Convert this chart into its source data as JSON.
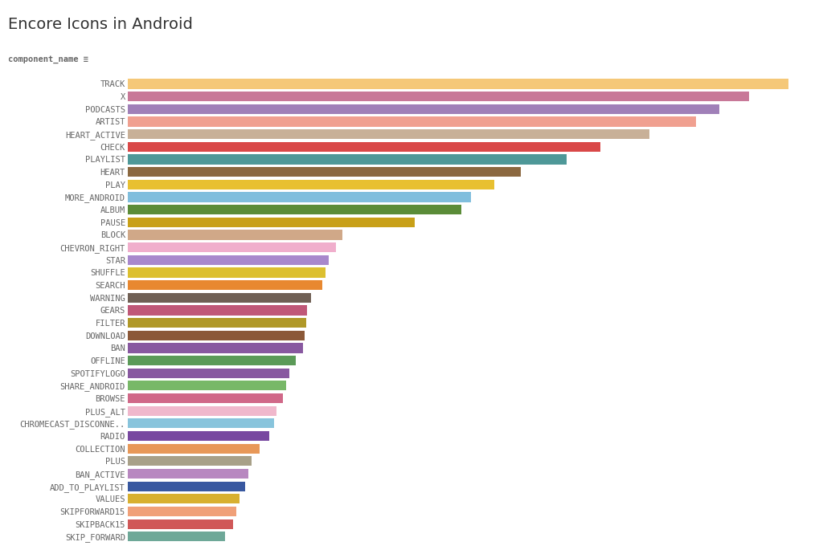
{
  "title": "Encore Icons in Android",
  "xlabel_label": "component_name ≡",
  "categories": [
    "TRACK",
    "X",
    "PODCASTS",
    "ARTIST",
    "HEART_ACTIVE",
    "CHECK",
    "PLAYLIST",
    "HEART",
    "PLAY",
    "MORE_ANDROID",
    "ALBUM",
    "PAUSE",
    "BLOCK",
    "CHEVRON_RIGHT",
    "STAR",
    "SHUFFLE",
    "SEARCH",
    "WARNING",
    "GEARS",
    "FILTER",
    "DOWNLOAD",
    "BAN",
    "OFFLINE",
    "SPOTIFYLOGO",
    "SHARE_ANDROID",
    "BROWSE",
    "PLUS_ALT",
    "CHROMECAST_DISCONNE..",
    "RADIO",
    "COLLECTION",
    "PLUS",
    "BAN_ACTIVE",
    "ADD_TO_PLAYLIST",
    "VALUES",
    "SKIPFORWARD15",
    "SKIPBACK15",
    "SKIP_FORWARD"
  ],
  "values": [
    1000,
    940,
    895,
    860,
    790,
    715,
    665,
    595,
    555,
    520,
    505,
    435,
    325,
    315,
    305,
    300,
    295,
    278,
    272,
    270,
    268,
    265,
    255,
    245,
    240,
    235,
    225,
    222,
    215,
    200,
    188,
    183,
    178,
    170,
    165,
    160,
    148
  ],
  "colors": [
    "#F5C878",
    "#C87898",
    "#A080B8",
    "#F0A090",
    "#C8B098",
    "#D94848",
    "#4E9898",
    "#8B6840",
    "#E8C030",
    "#80BEDD",
    "#5B8C38",
    "#C8A018",
    "#D0A888",
    "#F0AECC",
    "#A888CC",
    "#DCC030",
    "#E88830",
    "#706055",
    "#C05878",
    "#B09828",
    "#8B5838",
    "#8858A0",
    "#5B9A58",
    "#8858A0",
    "#78B868",
    "#D06888",
    "#F0B8CC",
    "#88C4DC",
    "#7848A0",
    "#E89858",
    "#A8A088",
    "#B888C0",
    "#3858A0",
    "#D8B030",
    "#F0A078",
    "#D05858",
    "#6EA898"
  ],
  "background_color": "#ffffff",
  "grid_color": "#e8e8e8",
  "title_fontsize": 14,
  "tick_fontsize": 7.5,
  "bar_height": 0.78
}
